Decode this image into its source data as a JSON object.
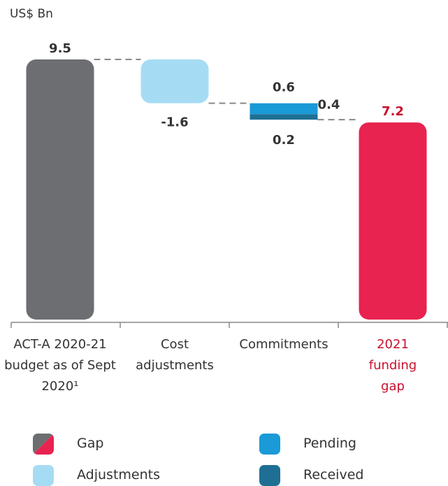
{
  "chart_data": {
    "type": "waterfall",
    "unit": "US$ Bn",
    "categories": [
      "ACT-A 2020-21 budget as of Sept 2020¹",
      "Cost adjustments",
      "Commitments",
      "2021 funding gap"
    ],
    "totals": [
      null,
      null,
      0.6,
      null
    ],
    "series": [
      {
        "name": "Gap",
        "color": [
          "#6d6e71",
          "#e8234f"
        ],
        "values": [
          9.5,
          null,
          null,
          7.2
        ]
      },
      {
        "name": "Adjustments",
        "color": "#a6dcf3",
        "values": [
          null,
          -1.6,
          null,
          null
        ]
      },
      {
        "name": "Pending",
        "color": "#1a9ad6",
        "values": [
          null,
          null,
          0.4,
          null
        ]
      },
      {
        "name": "Received",
        "color": "#1f6f94",
        "values": [
          null,
          null,
          0.2,
          null
        ]
      }
    ]
  }
}
